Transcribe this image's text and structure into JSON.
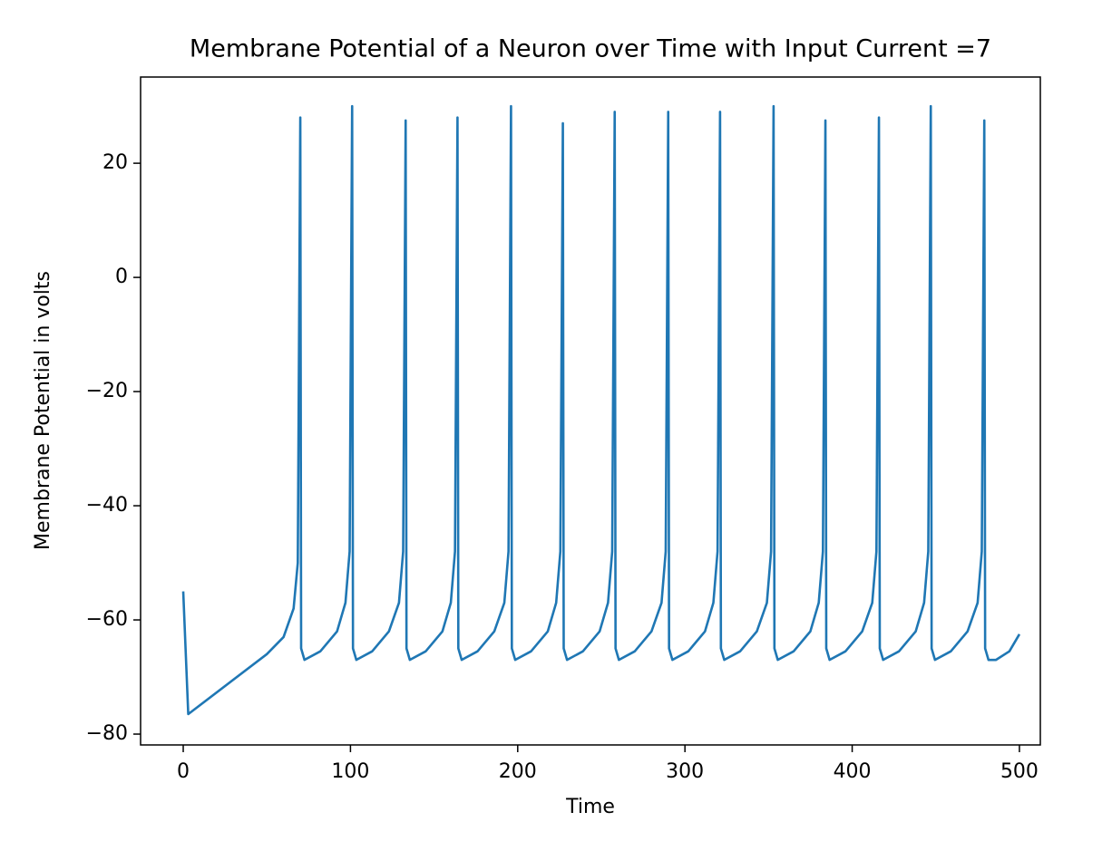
{
  "chart_data": {
    "type": "line",
    "title": "Membrane Potential of a Neuron over Time with Input Current =7",
    "x_label": "Time",
    "y_label": "Membrane Potential in volts",
    "color": "#1f77b4",
    "x": [
      0,
      3,
      50,
      60,
      66,
      68.5,
      70,
      70.5,
      72.5,
      82,
      92,
      97,
      99.5,
      101,
      101.5,
      103.5,
      113,
      123,
      129,
      131.5,
      133,
      133.5,
      135.5,
      145,
      155,
      160,
      162.5,
      164,
      164.5,
      166.5,
      176,
      186,
      192,
      194.5,
      196,
      196.5,
      198.5,
      208,
      218,
      223,
      225.5,
      227,
      227.5,
      229.5,
      239,
      249,
      254,
      256.5,
      258,
      258.5,
      260.5,
      270,
      280,
      286,
      288.5,
      290,
      290.5,
      292.5,
      302,
      312,
      317,
      319.5,
      321,
      321.5,
      323.5,
      333,
      343,
      349,
      351.5,
      353,
      353.5,
      355.5,
      365,
      375,
      380,
      382.5,
      384,
      384.5,
      386.5,
      396,
      406,
      412,
      414.5,
      416,
      416.5,
      418.5,
      428,
      438,
      443,
      445.5,
      447,
      447.5,
      449.5,
      459,
      469,
      475,
      477.5,
      479,
      479.5,
      481.5,
      486,
      494,
      500
    ],
    "values": [
      -55,
      -76.5,
      -66,
      -63,
      -58,
      -50,
      28,
      -65,
      -67,
      -65.5,
      -62,
      -57,
      -48,
      30,
      -65,
      -67,
      -65.5,
      -62,
      -57,
      -48,
      27.5,
      -65,
      -67,
      -65.5,
      -62,
      -57,
      -48,
      28,
      -65,
      -67,
      -65.5,
      -62,
      -57,
      -48,
      30,
      -65,
      -67,
      -65.5,
      -62,
      -57,
      -48,
      27,
      -65,
      -67,
      -65.5,
      -62,
      -57,
      -48,
      29,
      -65,
      -67,
      -65.5,
      -62,
      -57,
      -48,
      29,
      -65,
      -67,
      -65.5,
      -62,
      -57,
      -48,
      29,
      -65,
      -67,
      -65.5,
      -62,
      -57,
      -48,
      30,
      -65,
      -67,
      -65.5,
      -62,
      -57,
      -48,
      27.5,
      -65,
      -67,
      -65.5,
      -62,
      -57,
      -48,
      28,
      -65,
      -67,
      -65.5,
      -62,
      -57,
      -48,
      30,
      -65,
      -67,
      -65.5,
      -62,
      -57,
      -48,
      27.5,
      -65,
      -67,
      -67,
      -65.5,
      -62.5
    ],
    "xlim": [
      -25.5,
      512.5
    ],
    "ylim": [
      -81.9,
      35.1
    ],
    "xticks": [
      0,
      100,
      200,
      300,
      400,
      500
    ],
    "yticks": [
      {
        "value": -80,
        "label": "−80"
      },
      {
        "value": -60,
        "label": "−60"
      },
      {
        "value": -40,
        "label": "−40"
      },
      {
        "value": -20,
        "label": "−20"
      },
      0,
      20
    ],
    "grid": false
  }
}
